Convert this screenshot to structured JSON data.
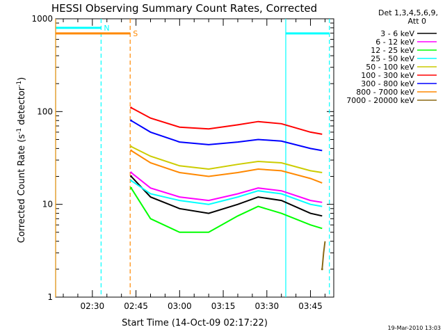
{
  "chart_data": {
    "type": "line",
    "title": "HESSI Observing Summary Count Rates, Corrected",
    "xlabel": "Start Time (14-Oct-09 02:17:22)",
    "ylabel_main": "Corrected Count Rate (s",
    "ylabel_sup1": "-1",
    "ylabel_mid": " detector",
    "ylabel_sup2": "-1",
    "ylabel_end": ")",
    "xlim": [
      "02:17:22",
      "03:53:00"
    ],
    "ylim": [
      1,
      1000
    ],
    "yscale": "log",
    "x_ticks": [
      "02:30",
      "02:45",
      "03:00",
      "03:15",
      "03:30",
      "03:45"
    ],
    "y_ticks": [
      "1",
      "10",
      "100",
      "1000"
    ],
    "legend_placement": "right",
    "legend_header": [
      "Det 1,3,4,5,6,9,",
      "Att 0"
    ],
    "series": [
      {
        "name": "3 - 6 keV",
        "color": "#000000",
        "x": [
          "02:43:20",
          "02:50:00",
          "03:00:00",
          "03:10:00",
          "03:20:00",
          "03:27:00",
          "03:35:00",
          "03:45:00",
          "03:49:00"
        ],
        "y": [
          20,
          12,
          9,
          8,
          10,
          12,
          11,
          8,
          7.5
        ]
      },
      {
        "name": "6 - 12 keV",
        "color": "#ff00ff",
        "x": [
          "02:43:20",
          "02:50:00",
          "03:00:00",
          "03:10:00",
          "03:20:00",
          "03:27:00",
          "03:35:00",
          "03:45:00",
          "03:49:00"
        ],
        "y": [
          22,
          15,
          12,
          11,
          13,
          15,
          14,
          11,
          10.5
        ]
      },
      {
        "name": "12 - 25 keV",
        "color": "#00ff00",
        "x": [
          "02:43:20",
          "02:50:00",
          "03:00:00",
          "03:10:00",
          "03:20:00",
          "03:27:00",
          "03:35:00",
          "03:45:00",
          "03:49:00"
        ],
        "y": [
          15,
          7,
          5,
          5,
          7.5,
          9.5,
          8,
          6,
          5.5
        ]
      },
      {
        "name": "25 - 50 keV",
        "color": "#00ffff",
        "x": [
          "02:43:20",
          "02:50:00",
          "03:00:00",
          "03:10:00",
          "03:20:00",
          "03:27:00",
          "03:35:00",
          "03:45:00",
          "03:49:00"
        ],
        "y": [
          18,
          13,
          11,
          10,
          12,
          14,
          13,
          10,
          9.5
        ]
      },
      {
        "name": "50 - 100 keV",
        "color": "#cccc00",
        "x": [
          "02:43:20",
          "02:50:00",
          "03:00:00",
          "03:10:00",
          "03:20:00",
          "03:27:00",
          "03:35:00",
          "03:45:00",
          "03:49:00"
        ],
        "y": [
          42,
          33,
          26,
          24,
          27,
          29,
          28,
          23,
          22
        ]
      },
      {
        "name": "100 - 300 keV",
        "color": "#ff0000",
        "x": [
          "02:43:20",
          "02:50:00",
          "03:00:00",
          "03:10:00",
          "03:20:00",
          "03:27:00",
          "03:35:00",
          "03:45:00",
          "03:49:00"
        ],
        "y": [
          110,
          85,
          68,
          65,
          72,
          78,
          74,
          60,
          57
        ]
      },
      {
        "name": "300 - 800 keV",
        "color": "#0000ff",
        "x": [
          "02:43:20",
          "02:50:00",
          "03:00:00",
          "03:10:00",
          "03:20:00",
          "03:27:00",
          "03:35:00",
          "03:45:00",
          "03:49:00"
        ],
        "y": [
          80,
          60,
          47,
          44,
          47,
          50,
          48,
          40,
          38
        ]
      },
      {
        "name": "800 - 7000 keV",
        "color": "#ff8800",
        "x": [
          "02:43:20",
          "02:50:00",
          "03:00:00",
          "03:10:00",
          "03:20:00",
          "03:27:00",
          "03:35:00",
          "03:45:00",
          "03:49:00"
        ],
        "y": [
          38,
          28,
          22,
          20,
          22,
          24,
          23,
          19,
          17
        ]
      },
      {
        "name": "7000 - 20000 keV",
        "color": "#8b6914",
        "x": [
          "03:49:00",
          "03:49:30",
          "03:50:00"
        ],
        "y": [
          2,
          3,
          4
        ]
      }
    ],
    "markers": [
      {
        "label": "N",
        "color": "#00ffff",
        "x": [
          "02:17:22",
          "02:33:00"
        ]
      },
      {
        "label": "S",
        "color": "#ff8800",
        "x": [
          "02:17:22",
          "02:43:00"
        ]
      },
      {
        "label": "",
        "color": "#00ffff",
        "x": [
          "03:36:30",
          "03:51:30"
        ]
      }
    ]
  },
  "footer": {
    "timestamp": "19-Mar-2010 13:03"
  }
}
